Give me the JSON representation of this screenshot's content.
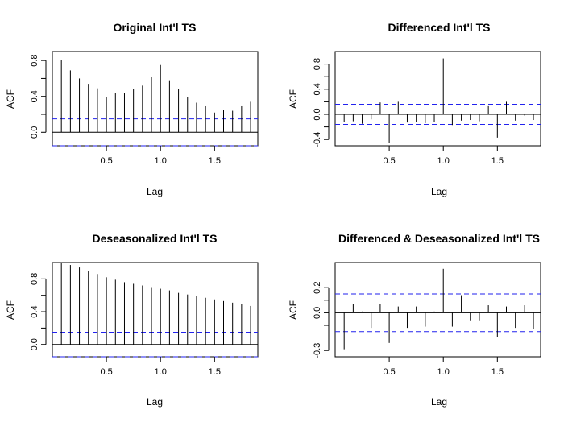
{
  "chart_data": [
    {
      "type": "bar",
      "title": "Original Int'l TS",
      "xlabel": "Lag",
      "ylabel": "ACF",
      "xlim": [
        0,
        1.9
      ],
      "ylim": [
        -0.15,
        0.9
      ],
      "xticks": [
        {
          "v": 0.5,
          "label": "0.5"
        },
        {
          "v": 1.0,
          "label": "1.0"
        },
        {
          "v": 1.5,
          "label": "1.5"
        }
      ],
      "yticks": [
        {
          "v": 0.0,
          "label": "0.0"
        },
        {
          "v": 0.4,
          "label": "0.4"
        },
        {
          "v": 0.8,
          "label": "0.8"
        }
      ],
      "yminor": [
        0.2,
        0.6
      ],
      "confidence_band": 0.15,
      "band_color": "#2222ee",
      "lags": [
        0.0833,
        0.1667,
        0.25,
        0.3333,
        0.4167,
        0.5,
        0.5833,
        0.6667,
        0.75,
        0.8333,
        0.9167,
        1.0,
        1.0833,
        1.1667,
        1.25,
        1.3333,
        1.4167,
        1.5,
        1.5833,
        1.6667,
        1.75,
        1.8333
      ],
      "values": [
        0.81,
        0.69,
        0.6,
        0.54,
        0.49,
        0.39,
        0.44,
        0.44,
        0.48,
        0.52,
        0.62,
        0.75,
        0.58,
        0.48,
        0.39,
        0.33,
        0.29,
        0.22,
        0.25,
        0.24,
        0.29,
        0.34
      ]
    },
    {
      "type": "bar",
      "title": "Differenced Int'l TS",
      "xlabel": "Lag",
      "ylabel": "ACF",
      "xlim": [
        0,
        1.9
      ],
      "ylim": [
        -0.5,
        1.0
      ],
      "xticks": [
        {
          "v": 0.5,
          "label": "0.5"
        },
        {
          "v": 1.0,
          "label": "1.0"
        },
        {
          "v": 1.5,
          "label": "1.5"
        }
      ],
      "yticks": [
        {
          "v": -0.4,
          "label": "-0.4"
        },
        {
          "v": 0.0,
          "label": "0.0"
        },
        {
          "v": 0.4,
          "label": "0.4"
        },
        {
          "v": 0.8,
          "label": "0.8"
        }
      ],
      "yminor": [
        -0.2,
        0.2,
        0.6
      ],
      "confidence_band": 0.16,
      "band_color": "#2222ee",
      "lags": [
        0.0833,
        0.1667,
        0.25,
        0.3333,
        0.4167,
        0.5,
        0.5833,
        0.6667,
        0.75,
        0.8333,
        0.9167,
        1.0,
        1.0833,
        1.1667,
        1.25,
        1.3333,
        1.4167,
        1.5,
        1.5833,
        1.6667,
        1.75,
        1.8333
      ],
      "values": [
        -0.12,
        -0.11,
        -0.15,
        -0.08,
        0.19,
        -0.45,
        0.2,
        -0.13,
        -0.12,
        -0.14,
        -0.12,
        0.89,
        -0.17,
        -0.1,
        -0.09,
        -0.11,
        0.13,
        -0.37,
        0.2,
        -0.1,
        -0.02,
        -0.09
      ]
    },
    {
      "type": "bar",
      "title": "Deseasonalized Int'l TS",
      "xlabel": "Lag",
      "ylabel": "ACF",
      "xlim": [
        0,
        1.9
      ],
      "ylim": [
        -0.15,
        1.0
      ],
      "xticks": [
        {
          "v": 0.5,
          "label": "0.5"
        },
        {
          "v": 1.0,
          "label": "1.0"
        },
        {
          "v": 1.5,
          "label": "1.5"
        }
      ],
      "yticks": [
        {
          "v": 0.0,
          "label": "0.0"
        },
        {
          "v": 0.4,
          "label": "0.4"
        },
        {
          "v": 0.8,
          "label": "0.8"
        }
      ],
      "yminor": [
        0.2,
        0.6
      ],
      "confidence_band": 0.15,
      "band_color": "#2222ee",
      "lags": [
        0.0833,
        0.1667,
        0.25,
        0.3333,
        0.4167,
        0.5,
        0.5833,
        0.6667,
        0.75,
        0.8333,
        0.9167,
        1.0,
        1.0833,
        1.1667,
        1.25,
        1.3333,
        1.4167,
        1.5,
        1.5833,
        1.6667,
        1.75,
        1.8333
      ],
      "values": [
        0.99,
        0.97,
        0.94,
        0.9,
        0.86,
        0.82,
        0.79,
        0.76,
        0.74,
        0.72,
        0.7,
        0.68,
        0.66,
        0.63,
        0.61,
        0.59,
        0.57,
        0.55,
        0.53,
        0.51,
        0.49,
        0.47
      ]
    },
    {
      "type": "bar",
      "title": "Differenced & Deseasonalized Int'l TS",
      "xlabel": "Lag",
      "ylabel": "ACF",
      "xlim": [
        0,
        1.9
      ],
      "ylim": [
        -0.35,
        0.4
      ],
      "xticks": [
        {
          "v": 0.5,
          "label": "0.5"
        },
        {
          "v": 1.0,
          "label": "1.0"
        },
        {
          "v": 1.5,
          "label": "1.5"
        }
      ],
      "yticks": [
        {
          "v": -0.3,
          "label": "-0.3"
        },
        {
          "v": 0.0,
          "label": "0.0"
        },
        {
          "v": 0.2,
          "label": "0.2"
        }
      ],
      "yminor": [
        -0.1,
        0.1
      ],
      "confidence_band": 0.15,
      "band_color": "#2222ee",
      "lags": [
        0.0833,
        0.1667,
        0.25,
        0.3333,
        0.4167,
        0.5,
        0.5833,
        0.6667,
        0.75,
        0.8333,
        0.9167,
        1.0,
        1.0833,
        1.1667,
        1.25,
        1.3333,
        1.4167,
        1.5,
        1.5833,
        1.6667,
        1.75,
        1.8333
      ],
      "values": [
        -0.29,
        0.07,
        0.01,
        -0.12,
        0.07,
        -0.24,
        0.05,
        -0.12,
        0.05,
        -0.11,
        0.01,
        0.35,
        -0.11,
        0.14,
        -0.06,
        -0.06,
        0.06,
        -0.19,
        0.05,
        -0.12,
        0.06,
        -0.13
      ]
    }
  ]
}
